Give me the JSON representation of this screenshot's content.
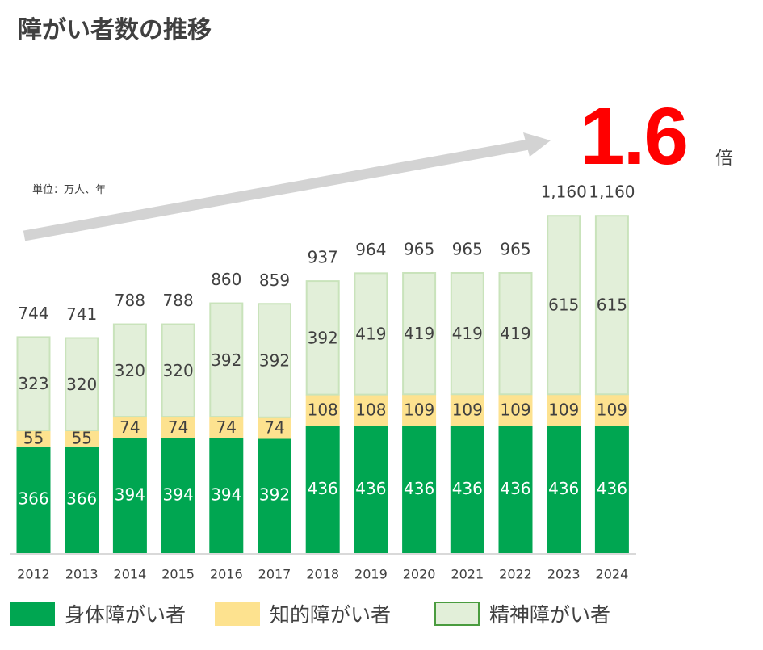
{
  "title": "障がい者数の推移",
  "unit_note": "単位：万人、年",
  "multiplier": {
    "value": "1.6",
    "unit": "倍"
  },
  "colors": {
    "physical": "#00a651",
    "intellectual": "#fde28f",
    "mental": "#e2efd9",
    "mental_border": "#c9e3bb",
    "arrow": "#d3d3d3",
    "highlight": "#ff0000",
    "text": "#404040"
  },
  "legend": [
    {
      "label": "身体障がい者",
      "color": "#00a651"
    },
    {
      "label": "知的障がい者",
      "color": "#fde28f"
    },
    {
      "label": "精神障がい者",
      "color": "#e2efd9"
    }
  ],
  "chart_data": {
    "type": "bar",
    "stacked": true,
    "title": "障がい者数の推移",
    "ylabel": "万人",
    "xlabel": "年",
    "categories": [
      "2012",
      "2013",
      "2014",
      "2015",
      "2016",
      "2017",
      "2018",
      "2019",
      "2020",
      "2021",
      "2022",
      "2023",
      "2024"
    ],
    "series": [
      {
        "name": "身体障がい者",
        "values": [
          366,
          366,
          394,
          394,
          394,
          392,
          436,
          436,
          436,
          436,
          436,
          436,
          436
        ]
      },
      {
        "name": "知的障がい者",
        "values": [
          55,
          55,
          74,
          74,
          74,
          74,
          108,
          108,
          109,
          109,
          109,
          109,
          109
        ]
      },
      {
        "name": "精神障がい者",
        "values": [
          323,
          320,
          320,
          320,
          392,
          392,
          392,
          419,
          419,
          419,
          419,
          615,
          615
        ]
      }
    ],
    "totals": [
      "744",
      "741",
      "788",
      "788",
      "860",
      "859",
      "937",
      "964",
      "965",
      "965",
      "965",
      "1,160",
      "1,160"
    ],
    "ylim": [
      0,
      1300
    ],
    "annotation": "1.6倍"
  }
}
